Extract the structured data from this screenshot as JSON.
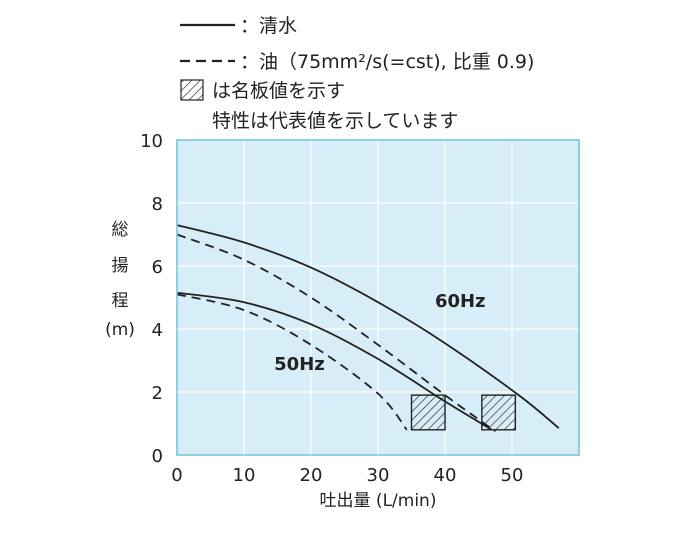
{
  "chart_data": {
    "type": "line",
    "xlabel": "吐出量 (L/min)",
    "ylabel_chars": [
      "総",
      "揚",
      "程",
      "(m)"
    ],
    "xlim": [
      0,
      60
    ],
    "ylim": [
      0,
      10
    ],
    "xticks": [
      0,
      10,
      20,
      30,
      40,
      50
    ],
    "yticks": [
      0,
      2,
      4,
      6,
      8,
      10
    ],
    "grid": true,
    "background_color": "#d7edf8",
    "grid_color": "#ffffff",
    "frame_color": "#6ec3dc",
    "legend": {
      "water_label": "：清水",
      "oil_label": "：油（75mm²/s(=cst), 比重 0.9)",
      "rating_label": "は名板値を示す",
      "note": "特性は代表値を示しています"
    },
    "annotations": [
      {
        "text": "60Hz",
        "x": 38.5,
        "y": 4.7
      },
      {
        "text": "50Hz",
        "x": 14.5,
        "y": 2.7
      }
    ],
    "series": [
      {
        "key": "water-60hz",
        "style": "solid",
        "x": [
          0,
          10,
          20,
          30,
          40,
          51,
          57
        ],
        "y": [
          7.3,
          6.75,
          5.95,
          4.85,
          3.55,
          1.9,
          0.85
        ]
      },
      {
        "key": "oil-60hz",
        "style": "dashed",
        "x": [
          0,
          10,
          20,
          30,
          40,
          47.5
        ],
        "y": [
          7.0,
          6.2,
          5.0,
          3.5,
          1.9,
          0.75
        ]
      },
      {
        "key": "water-50hz",
        "style": "solid",
        "x": [
          0,
          10,
          20,
          30,
          40,
          47
        ],
        "y": [
          5.15,
          4.85,
          4.15,
          3.05,
          1.7,
          0.8
        ]
      },
      {
        "key": "oil-50hz",
        "style": "dashed",
        "x": [
          0,
          10,
          20,
          30,
          34.3
        ],
        "y": [
          5.1,
          4.6,
          3.5,
          1.95,
          0.8
        ]
      }
    ],
    "rating_boxes": [
      {
        "name": "rating-50hz",
        "x": [
          35,
          40
        ],
        "y": [
          0.8,
          1.9
        ]
      },
      {
        "name": "rating-60hz",
        "x": [
          45.5,
          50.5
        ],
        "y": [
          0.8,
          1.9
        ]
      }
    ]
  }
}
